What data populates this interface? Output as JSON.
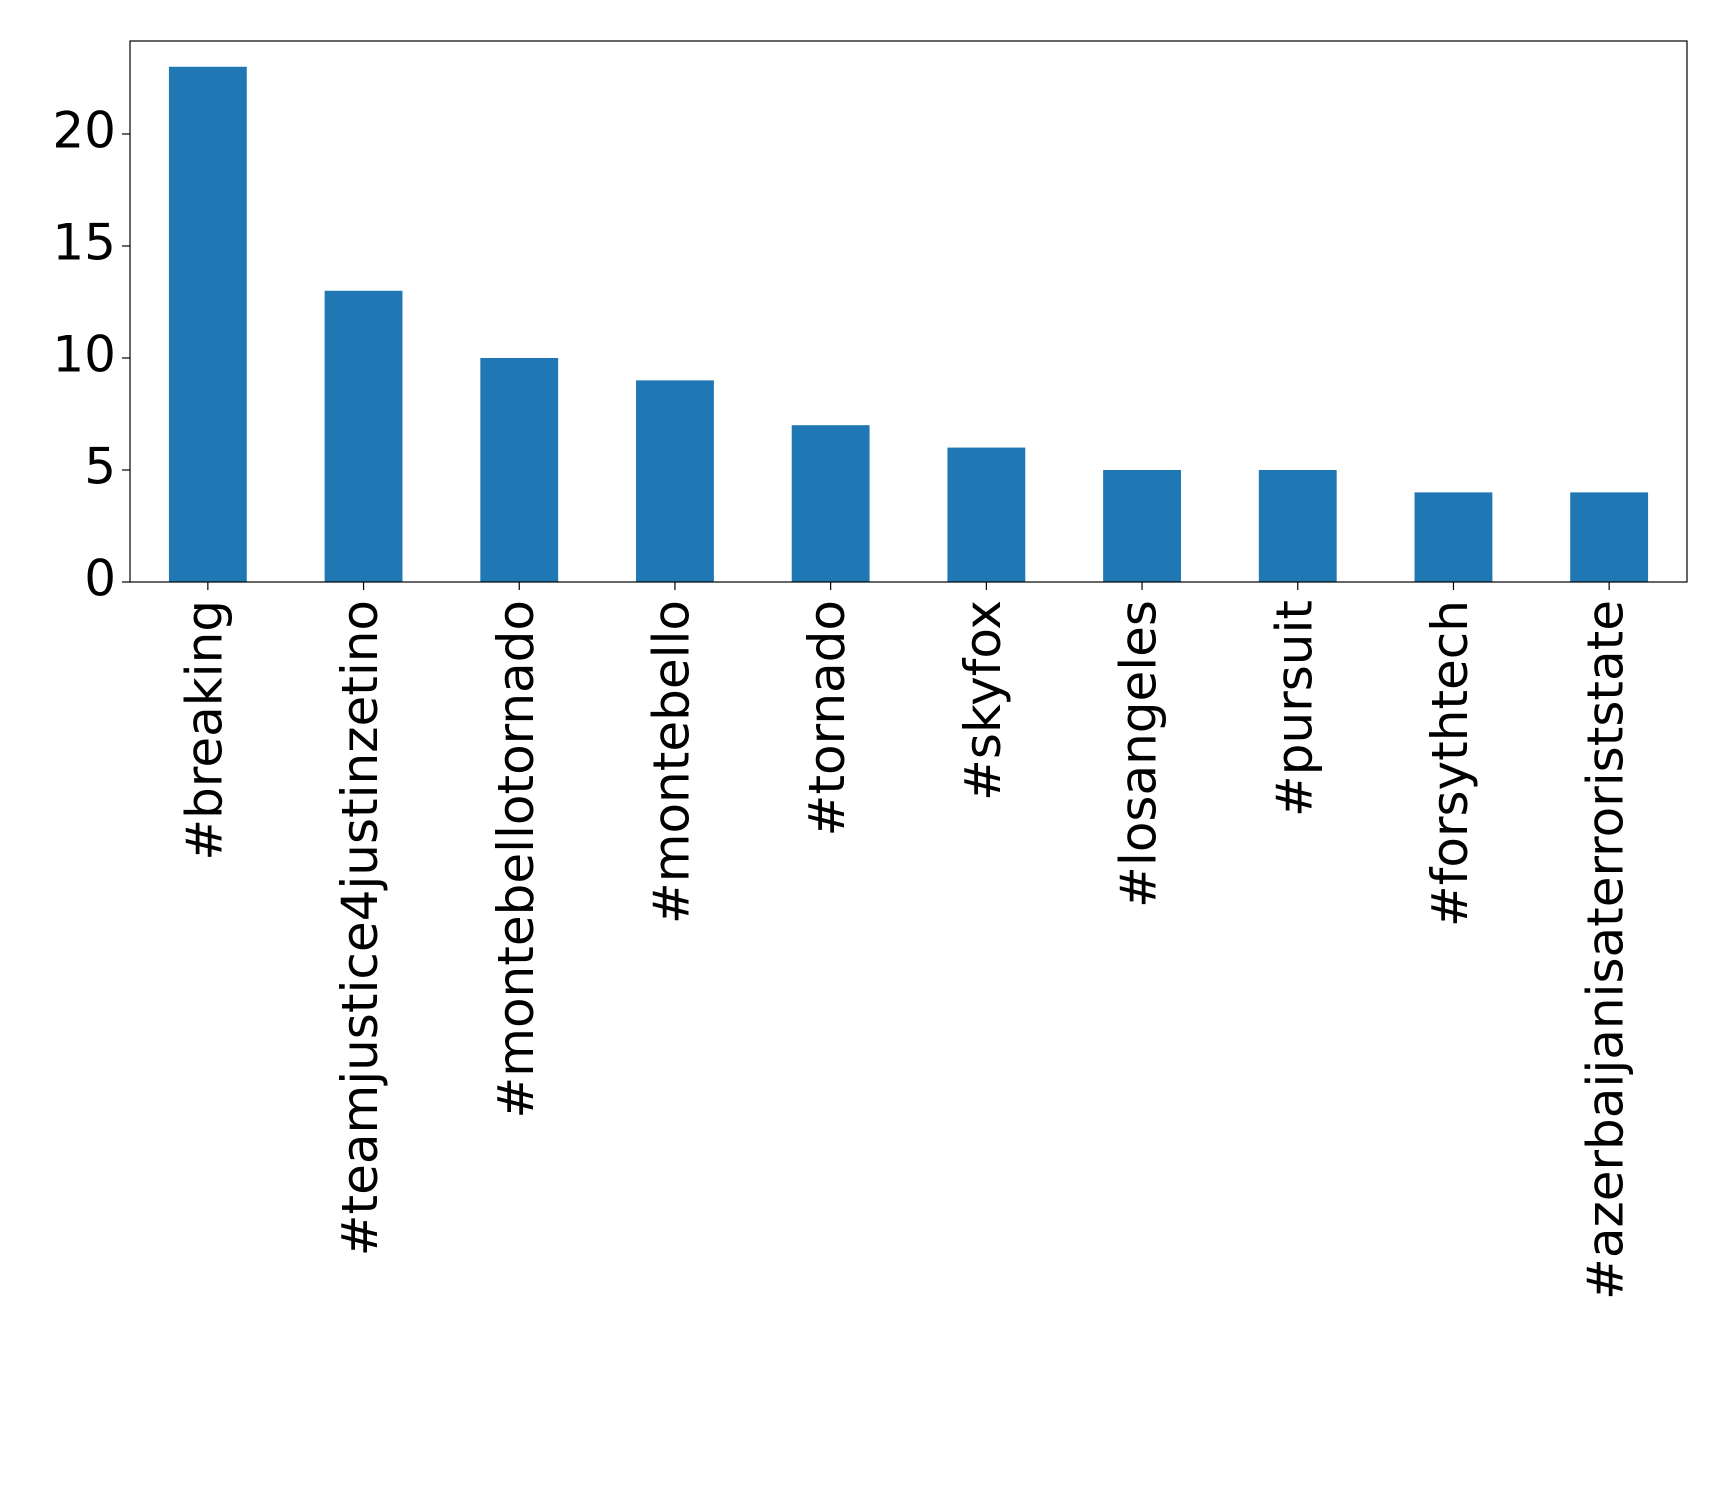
{
  "chart_data": {
    "type": "bar",
    "categories": [
      "#breaking",
      "#teamjustice4justinzetino",
      "#montebellotornado",
      "#montebello",
      "#tornado",
      "#skyfox",
      "#losangeles",
      "#pursuit",
      "#forsythtech",
      "#azerbaijanisaterroriststate"
    ],
    "values": [
      23,
      13,
      10,
      9,
      7,
      6,
      5,
      5,
      4,
      4
    ],
    "color": "#1f77b4",
    "ylim": [
      0,
      24.15
    ],
    "yticks": [
      0,
      5,
      10,
      15,
      20
    ],
    "grid": false
  }
}
